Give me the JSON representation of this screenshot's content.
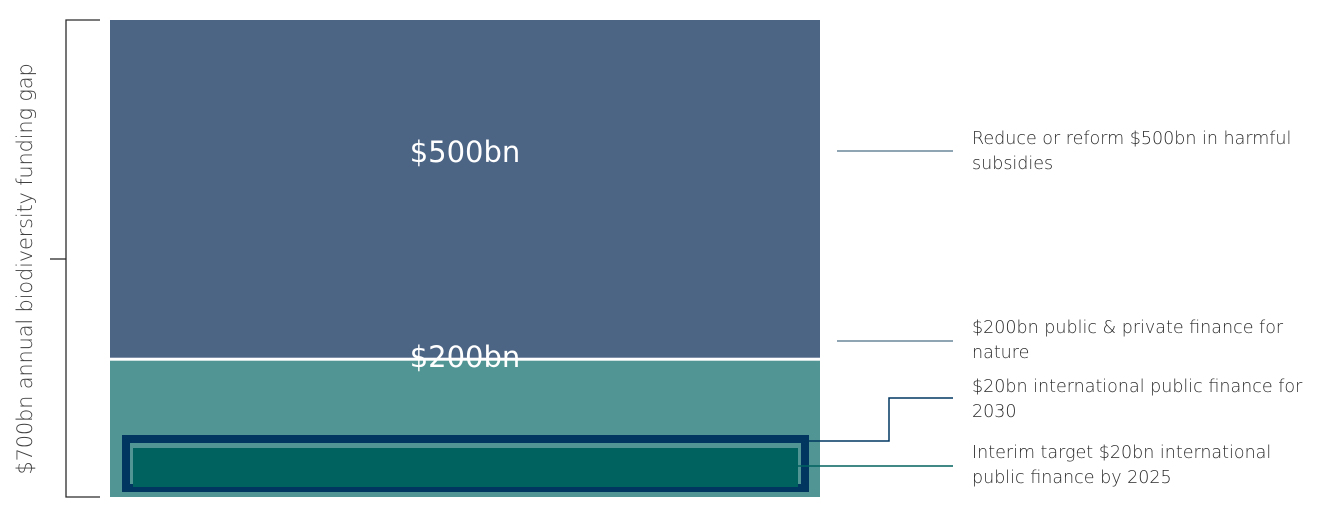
{
  "chart_data": {
    "type": "bar",
    "stacked": true,
    "total_label": "$700bn annual biodiversity funding gap",
    "total_value": 700,
    "unit": "$bn",
    "segments": [
      {
        "value": 500,
        "label": "$500bn",
        "annotation": "Reduce or reform $500bn in harmful subsidies",
        "color": "#4d6585"
      },
      {
        "value": 200,
        "label": "$200bn",
        "annotation": "$200bn public & private finance for nature",
        "color": "#519594"
      }
    ],
    "nested": [
      {
        "value": 20,
        "annotation": "$20bn international public finance for 2030",
        "color": "#003660",
        "style": "outline"
      },
      {
        "value": 20,
        "annotation": "Interim target $20bn international public finance by 2025",
        "color": "#00625f",
        "style": "fill"
      }
    ]
  }
}
